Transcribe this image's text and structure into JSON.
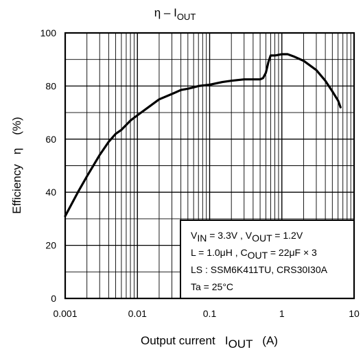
{
  "chart_data": {
    "type": "line",
    "title": {
      "main": "η – I",
      "sub": "OUT"
    },
    "xlabel": {
      "pre": "Output current   I",
      "sub": "OUT",
      "post": "   (A)"
    },
    "ylabel": "Efficiency   η    (%)",
    "x_scale": "log",
    "xlim": [
      0.001,
      10
    ],
    "ylim": [
      0,
      100
    ],
    "x_ticks": [
      {
        "value": 0.001,
        "label": "0.001"
      },
      {
        "value": 0.01,
        "label": "0.01"
      },
      {
        "value": 0.1,
        "label": "0.1"
      },
      {
        "value": 1,
        "label": "1"
      },
      {
        "value": 10,
        "label": "10"
      }
    ],
    "y_ticks": [
      {
        "value": 0,
        "label": "0"
      },
      {
        "value": 20,
        "label": "20"
      },
      {
        "value": 40,
        "label": "40"
      },
      {
        "value": 60,
        "label": "60"
      },
      {
        "value": 80,
        "label": "80"
      },
      {
        "value": 100,
        "label": "100"
      }
    ],
    "grid": true,
    "series": [
      {
        "color": "#000000",
        "x": [
          0.001,
          0.0015,
          0.002,
          0.003,
          0.004,
          0.005,
          0.006,
          0.008,
          0.01,
          0.015,
          0.02,
          0.03,
          0.04,
          0.05,
          0.06,
          0.07,
          0.1,
          0.15,
          0.2,
          0.3,
          0.4,
          0.5,
          0.55,
          0.6,
          0.65,
          0.7,
          0.8,
          1.0,
          1.2,
          1.5,
          2.0,
          3.0,
          4.0,
          5.0,
          6.0,
          6.5
        ],
        "y": [
          31,
          40,
          46,
          54,
          59,
          62,
          63.5,
          67,
          69,
          72.5,
          75,
          77,
          78.5,
          79,
          79.5,
          80,
          80.5,
          81.5,
          82,
          82.5,
          82.5,
          82.5,
          83,
          85,
          89,
          91.5,
          91.5,
          92,
          92,
          91,
          89.5,
          86,
          82,
          78,
          74.5,
          72
        ]
      }
    ],
    "annotation": {
      "lines": [
        [
          {
            "t": "V"
          },
          {
            "t": "IN",
            "sub": true
          },
          {
            "t": " = 3.3V , V"
          },
          {
            "t": "OUT",
            "sub": true
          },
          {
            "t": " = 1.2V"
          }
        ],
        [
          {
            "t": "L = 1.0μH , C"
          },
          {
            "t": "OUT",
            "sub": true
          },
          {
            "t": " = 22μF   × 3"
          }
        ],
        [
          {
            "t": "LS : SSM6K411TU, CRS30I30A"
          }
        ],
        [
          {
            "t": "Ta = 25°C"
          }
        ]
      ]
    }
  }
}
